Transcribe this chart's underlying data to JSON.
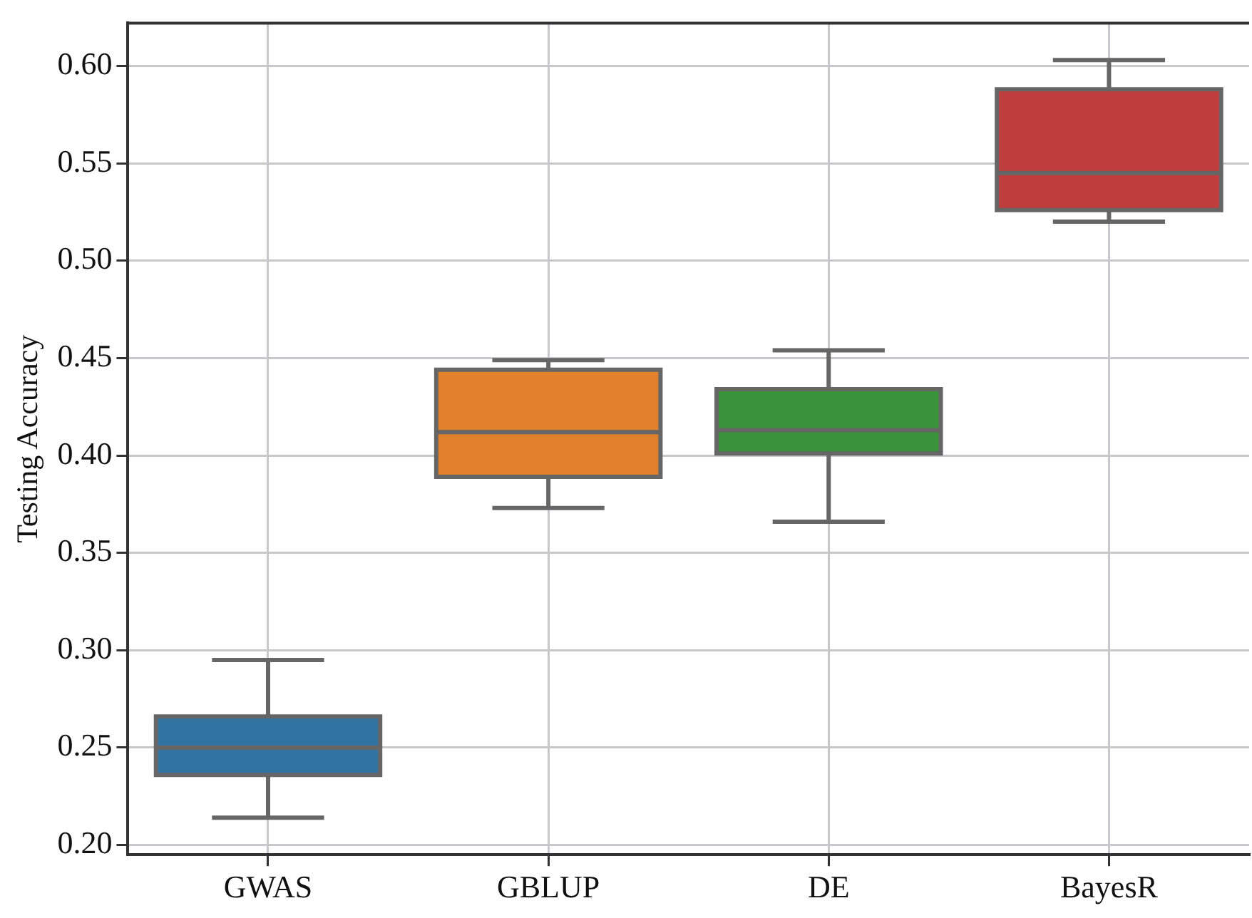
{
  "chart_data": {
    "type": "box",
    "ylabel": "Testing Accuracy",
    "categories": [
      "GWAS",
      "GBLUP",
      "DE",
      "BayesR"
    ],
    "colors": [
      "#3274a1",
      "#e1812c",
      "#3a923a",
      "#c03d3e"
    ],
    "boxes": [
      {
        "low": 0.214,
        "q1": 0.236,
        "median": 0.25,
        "q3": 0.266,
        "high": 0.295
      },
      {
        "low": 0.373,
        "q1": 0.389,
        "median": 0.412,
        "q3": 0.444,
        "high": 0.449
      },
      {
        "low": 0.366,
        "q1": 0.401,
        "median": 0.413,
        "q3": 0.434,
        "high": 0.454
      },
      {
        "low": 0.52,
        "q1": 0.526,
        "median": 0.545,
        "q3": 0.588,
        "high": 0.603
      }
    ],
    "ylim": [
      0.195,
      0.622
    ],
    "yticks": [
      {
        "value": 0.2,
        "label": "0.20"
      },
      {
        "value": 0.25,
        "label": "0.25"
      },
      {
        "value": 0.3,
        "label": "0.30"
      },
      {
        "value": 0.35,
        "label": "0.35"
      },
      {
        "value": 0.4,
        "label": "0.40"
      },
      {
        "value": 0.45,
        "label": "0.45"
      },
      {
        "value": 0.5,
        "label": "0.50"
      },
      {
        "value": 0.55,
        "label": "0.55"
      },
      {
        "value": 0.6,
        "label": "0.60"
      }
    ],
    "grid": true
  }
}
